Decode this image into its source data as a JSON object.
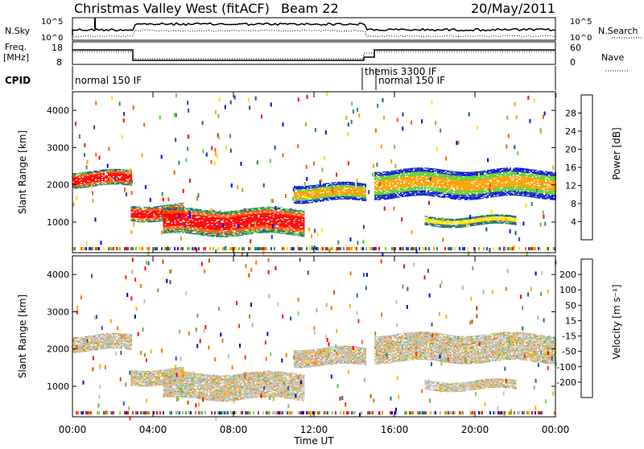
{
  "header": {
    "station": "Christmas Valley West (fitACF)",
    "beam": "Beam 22",
    "date": "20/May/2011"
  },
  "labels": {
    "nsky": "N.Sky",
    "nsearch": "N.Search",
    "freq": "Freq.",
    "freq_unit": "[MHz]",
    "nave": "Nave",
    "cpid": "CPID",
    "nsky_ticks": [
      "10^5",
      "10^0"
    ],
    "freq_ticks": [
      "18",
      "8"
    ],
    "nave_ticks": [
      "60",
      "0"
    ]
  },
  "cpid_segments": [
    {
      "label": "normal 150 IF",
      "start_hour": 0,
      "end_hour": 14.6
    },
    {
      "label": "themis 3300 IF",
      "start_hour": 14.6,
      "end_hour": 15.0
    },
    {
      "label": "normal 150 IF",
      "start_hour": 15.0,
      "end_hour": 24
    }
  ],
  "chart_data": [
    {
      "type": "heatmap",
      "id": "power",
      "ylabel": "Slant Range [km]",
      "yticks": [
        1000,
        2000,
        3000,
        4000
      ],
      "ylim": [
        180,
        4500
      ],
      "xlabel": "Time UT",
      "xticks": [
        "00:00",
        "04:00",
        "08:00",
        "12:00",
        "16:00",
        "20:00",
        "00:00"
      ],
      "xlim_hours": [
        0,
        24
      ],
      "colorbar": {
        "label": "Power [dB]",
        "ticks": [
          "28",
          "24",
          "20",
          "16",
          "12",
          "8",
          "4"
        ],
        "colors": [
          "#ff0000",
          "#ff5a00",
          "#ffa000",
          "#ffe000",
          "#66cc33",
          "#2e8b57",
          "#1e4f96",
          "#0000ff"
        ]
      },
      "echo_bands": [
        {
          "start_hour": 0.0,
          "end_hour": 2.9,
          "range_km": [
            1950,
            2350
          ],
          "level": "high"
        },
        {
          "start_hour": 2.9,
          "end_hour": 5.5,
          "range_km": [
            1050,
            1450
          ],
          "level": "high"
        },
        {
          "start_hour": 4.5,
          "end_hour": 11.5,
          "range_km": [
            650,
            1350
          ],
          "level": "high"
        },
        {
          "start_hour": 11.0,
          "end_hour": 14.6,
          "range_km": [
            1550,
            2000
          ],
          "level": "mid"
        },
        {
          "start_hour": 15.0,
          "end_hour": 24.0,
          "range_km": [
            1650,
            2400
          ],
          "level": "mid"
        },
        {
          "start_hour": 17.5,
          "end_hour": 22.0,
          "range_km": [
            900,
            1150
          ],
          "level": "low"
        }
      ]
    },
    {
      "type": "heatmap",
      "id": "velocity",
      "ylabel": "Slant Range [km]",
      "yticks": [
        1000,
        2000,
        3000,
        4000
      ],
      "ylim": [
        180,
        4500
      ],
      "xlabel": "Time UT",
      "xticks": [
        "00:00",
        "04:00",
        "08:00",
        "12:00",
        "16:00",
        "20:00",
        "00:00"
      ],
      "xlim_hours": [
        0,
        24
      ],
      "colorbar": {
        "label": "Velocity [m s⁻¹]",
        "ticks": [
          "200",
          "100",
          "50",
          "15",
          "-15",
          "-50",
          "-100",
          "-200"
        ],
        "colors": [
          "#0000cc",
          "#2060a0",
          "#60b040",
          "#80d060",
          "#c0c0c0",
          "#ffb000",
          "#ff7000",
          "#ff3000",
          "#ff0000"
        ]
      }
    }
  ]
}
